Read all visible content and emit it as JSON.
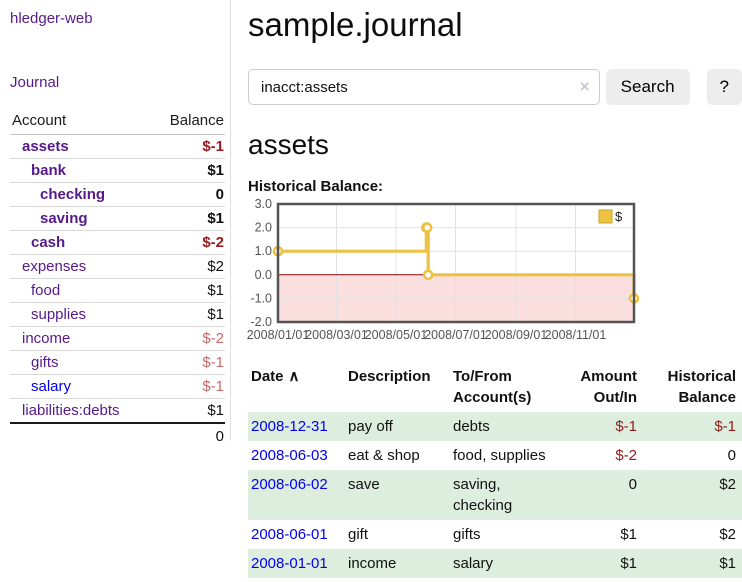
{
  "colors": {
    "link_purple": "#551a8b",
    "link_blue": "#0000ee",
    "negative_strong": "#8e1c1c",
    "negative_muted": "#c66a6a",
    "row_stripe_green": "#deeede",
    "series_yellow": "#edc240"
  },
  "sidebar": {
    "brand": "hledger-web",
    "journal_link": "Journal",
    "accounts_table": {
      "account_header": "Account",
      "balance_header": "Balance",
      "rows": [
        {
          "name": "assets",
          "balance": "$-1",
          "level": 0,
          "bold": true,
          "link_color": "purple",
          "balance_class": "neg-dark"
        },
        {
          "name": "bank",
          "balance": "$1",
          "level": 1,
          "bold": true,
          "link_color": "purple",
          "balance_class": ""
        },
        {
          "name": "checking",
          "balance": "0",
          "level": 2,
          "bold": true,
          "link_color": "purple",
          "balance_class": ""
        },
        {
          "name": "saving",
          "balance": "$1",
          "level": 2,
          "bold": true,
          "link_color": "purple",
          "balance_class": ""
        },
        {
          "name": "cash",
          "balance": "$-2",
          "level": 1,
          "bold": true,
          "link_color": "purple",
          "balance_class": "neg-dark"
        },
        {
          "name": "expenses",
          "balance": "$2",
          "level": 0,
          "bold": false,
          "link_color": "purple",
          "balance_class": ""
        },
        {
          "name": "food",
          "balance": "$1",
          "level": 1,
          "bold": false,
          "link_color": "purple",
          "balance_class": ""
        },
        {
          "name": "supplies",
          "balance": "$1",
          "level": 1,
          "bold": false,
          "link_color": "purple",
          "balance_class": ""
        },
        {
          "name": "income",
          "balance": "$-2",
          "level": 0,
          "bold": false,
          "link_color": "purple",
          "balance_class": "neg-light"
        },
        {
          "name": "gifts",
          "balance": "$-1",
          "level": 1,
          "bold": false,
          "link_color": "purple",
          "balance_class": "neg-light"
        },
        {
          "name": "salary",
          "balance": "$-1",
          "level": 1,
          "bold": false,
          "link_color": "blue",
          "balance_class": "neg-light"
        },
        {
          "name": "liabilities:debts",
          "balance": "$1",
          "level": 0,
          "bold": false,
          "link_color": "purple",
          "balance_class": ""
        }
      ],
      "total": "0"
    }
  },
  "main": {
    "title": "sample.journal",
    "search": {
      "value": "inacct:assets",
      "clear_icon": "×",
      "search_button": "Search",
      "help_button": "?"
    },
    "account_heading": "assets",
    "chart_heading": "Historical Balance:",
    "register": {
      "headers": {
        "date": "Date",
        "sort_icon": "∧",
        "description": "Description",
        "accounts": "To/From Account(s)",
        "amount": "Amount Out/In",
        "balance": "Historical Balance"
      },
      "rows": [
        {
          "date": "2008-12-31",
          "description": "pay off",
          "accounts": "debts",
          "amount": "$-1",
          "amount_neg": true,
          "balance": "$-1",
          "balance_neg": true
        },
        {
          "date": "2008-06-03",
          "description": "eat & shop",
          "accounts": "food, supplies",
          "amount": "$-2",
          "amount_neg": true,
          "balance": "0",
          "balance_neg": false
        },
        {
          "date": "2008-06-02",
          "description": "save",
          "accounts": "saving, checking",
          "amount": "0",
          "amount_neg": false,
          "balance": "$2",
          "balance_neg": false
        },
        {
          "date": "2008-06-01",
          "description": "gift",
          "accounts": "gifts",
          "amount": "$1",
          "amount_neg": false,
          "balance": "$2",
          "balance_neg": false
        },
        {
          "date": "2008-01-01",
          "description": "income",
          "accounts": "salary",
          "amount": "$1",
          "amount_neg": false,
          "balance": "$1",
          "balance_neg": false
        }
      ]
    }
  },
  "chart_data": {
    "type": "line",
    "title": "Historical Balance",
    "step": true,
    "series": [
      {
        "name": "$",
        "color": "#edc240",
        "points": [
          [
            "2008-01-01",
            1
          ],
          [
            "2008-06-01",
            2
          ],
          [
            "2008-06-02",
            2
          ],
          [
            "2008-06-03",
            0
          ],
          [
            "2008-12-31",
            -1
          ]
        ]
      }
    ],
    "x_ticks": [
      "2008/01/01",
      "2008/03/01",
      "2008/05/01",
      "2008/07/01",
      "2008/09/01",
      "2008/11/01"
    ],
    "y_ticks": [
      3.0,
      2.0,
      1.0,
      0.0,
      -1.0,
      -2.0
    ],
    "ylim": [
      -2,
      3
    ],
    "xlim": [
      "2008-01-01",
      "2008-12-31"
    ],
    "grid": true,
    "legend_position": "top-right",
    "negative_region_color": "#fbdfdf",
    "zero_line_color": "#8b0000",
    "grid_color": "#e2e2e2",
    "border_color": "#545454",
    "tick_label_color": "#545454",
    "legend_swatch_border": "#c9a42e"
  }
}
